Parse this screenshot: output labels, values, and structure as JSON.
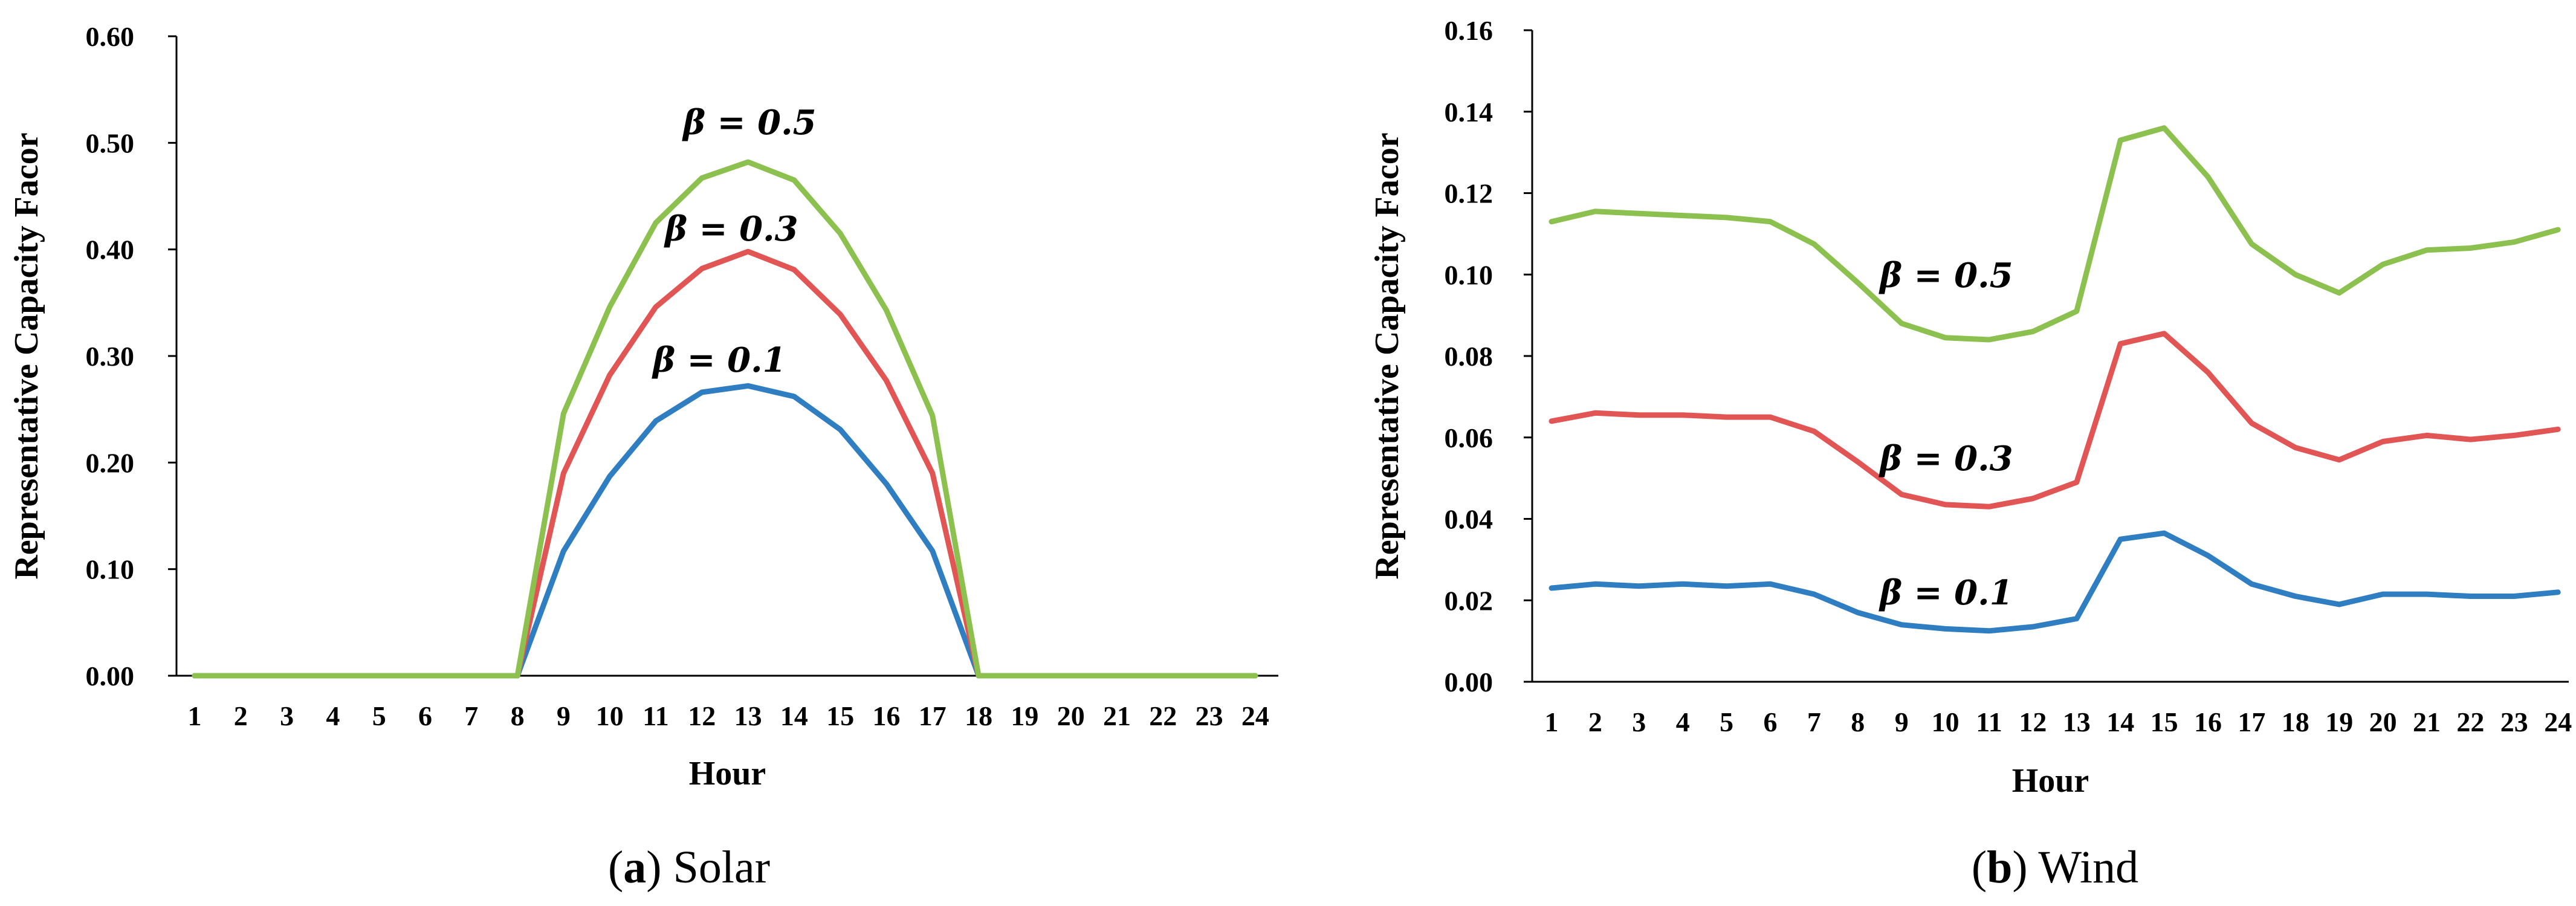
{
  "chart_data": [
    {
      "type": "line",
      "caption_letter": "a",
      "caption_open": "(",
      "caption_close": ")",
      "caption_text": "Solar",
      "xlabel": "Hour",
      "ylabel": "Representative Capacity Facor",
      "x": [
        1,
        2,
        3,
        4,
        5,
        6,
        7,
        8,
        9,
        10,
        11,
        12,
        13,
        14,
        15,
        16,
        17,
        18,
        19,
        20,
        21,
        22,
        23,
        24
      ],
      "ylim": [
        0,
        0.6
      ],
      "yticks": [
        "0.00",
        "0.10",
        "0.20",
        "0.30",
        "0.40",
        "0.50",
        "0.60"
      ],
      "ytick_values": [
        0,
        0.1,
        0.2,
        0.3,
        0.4,
        0.5,
        0.6
      ],
      "grid": false,
      "series": [
        {
          "label": "β = 0.1",
          "color": "#2e7ec1",
          "values": [
            0,
            0,
            0,
            0,
            0,
            0,
            0,
            0,
            0.117,
            0.187,
            0.239,
            0.266,
            0.272,
            0.262,
            0.231,
            0.18,
            0.117,
            0,
            0,
            0,
            0,
            0,
            0,
            0
          ]
        },
        {
          "label": "β = 0.3",
          "color": "#e15555",
          "values": [
            0,
            0,
            0,
            0,
            0,
            0,
            0,
            0,
            0.19,
            0.282,
            0.346,
            0.382,
            0.398,
            0.381,
            0.339,
            0.277,
            0.19,
            0,
            0,
            0,
            0,
            0,
            0,
            0
          ]
        },
        {
          "label": "β = 0.5",
          "color": "#8cc04f",
          "values": [
            0,
            0,
            0,
            0,
            0,
            0,
            0,
            0,
            0.246,
            0.346,
            0.425,
            0.467,
            0.482,
            0.465,
            0.415,
            0.343,
            0.244,
            0,
            0,
            0,
            0,
            0,
            0,
            0
          ]
        }
      ]
    },
    {
      "type": "line",
      "caption_letter": "b",
      "caption_open": "(",
      "caption_close": ")",
      "caption_text": "Wind",
      "xlabel": "Hour",
      "ylabel": "Representative Capacity Facor",
      "x": [
        1,
        2,
        3,
        4,
        5,
        6,
        7,
        8,
        9,
        10,
        11,
        12,
        13,
        14,
        15,
        16,
        17,
        18,
        19,
        20,
        21,
        22,
        23,
        24
      ],
      "ylim": [
        0,
        0.16
      ],
      "yticks": [
        "0.00",
        "0.02",
        "0.04",
        "0.06",
        "0.08",
        "0.10",
        "0.12",
        "0.14",
        "0.16"
      ],
      "ytick_values": [
        0,
        0.02,
        0.04,
        0.06,
        0.08,
        0.1,
        0.12,
        0.14,
        0.16
      ],
      "grid": false,
      "series": [
        {
          "label": "β = 0.1",
          "color": "#2e7ec1",
          "values": [
            0.023,
            0.024,
            0.0235,
            0.024,
            0.0235,
            0.024,
            0.0215,
            0.017,
            0.014,
            0.013,
            0.0125,
            0.0135,
            0.0155,
            0.035,
            0.0365,
            0.031,
            0.024,
            0.021,
            0.019,
            0.0215,
            0.0215,
            0.021,
            0.021,
            0.022
          ]
        },
        {
          "label": "β = 0.3",
          "color": "#e15555",
          "values": [
            0.064,
            0.066,
            0.0655,
            0.0655,
            0.065,
            0.065,
            0.0615,
            0.054,
            0.046,
            0.0435,
            0.043,
            0.045,
            0.049,
            0.083,
            0.0855,
            0.076,
            0.0635,
            0.0575,
            0.0545,
            0.059,
            0.0605,
            0.0595,
            0.0605,
            0.062
          ]
        },
        {
          "label": "β = 0.5",
          "color": "#8cc04f",
          "values": [
            0.113,
            0.1155,
            0.115,
            0.1145,
            0.114,
            0.113,
            0.1075,
            0.098,
            0.088,
            0.0845,
            0.084,
            0.086,
            0.091,
            0.133,
            0.136,
            0.124,
            0.1075,
            0.1,
            0.0955,
            0.1025,
            0.106,
            0.1065,
            0.108,
            0.111
          ]
        }
      ]
    }
  ]
}
